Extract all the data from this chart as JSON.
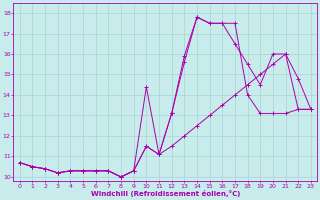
{
  "xlabel": "Windchill (Refroidissement éolien,°C)",
  "background_color": "#c8ecec",
  "grid_color": "#a8d4d4",
  "line_color": "#aa00aa",
  "xlim": [
    -0.5,
    23.5
  ],
  "ylim": [
    9.8,
    18.5
  ],
  "xticks": [
    0,
    1,
    2,
    3,
    4,
    5,
    6,
    7,
    8,
    9,
    10,
    11,
    12,
    13,
    14,
    15,
    16,
    17,
    18,
    19,
    20,
    21,
    22,
    23
  ],
  "yticks": [
    10,
    11,
    12,
    13,
    14,
    15,
    16,
    17,
    18
  ],
  "line1_x": [
    0,
    1,
    2,
    3,
    4,
    5,
    6,
    7,
    8,
    9,
    10,
    11,
    12,
    13,
    14,
    15,
    16,
    17,
    18,
    19,
    20,
    21,
    22,
    23
  ],
  "line1_y": [
    10.7,
    10.5,
    10.4,
    10.2,
    10.3,
    10.3,
    10.3,
    10.3,
    10.0,
    10.3,
    11.5,
    11.1,
    11.5,
    12.0,
    12.5,
    13.0,
    13.5,
    14.0,
    14.5,
    15.0,
    15.5,
    16.0,
    13.3,
    13.3
  ],
  "line2_x": [
    0,
    1,
    2,
    3,
    4,
    5,
    6,
    7,
    8,
    9,
    10,
    11,
    12,
    13,
    14,
    15,
    16,
    17,
    18,
    19,
    20,
    21,
    22,
    23
  ],
  "line2_y": [
    10.7,
    10.5,
    10.4,
    10.2,
    10.3,
    10.3,
    10.3,
    10.3,
    10.0,
    10.3,
    14.4,
    11.1,
    13.1,
    15.9,
    17.8,
    17.5,
    17.5,
    16.5,
    15.5,
    14.5,
    16.0,
    16.0,
    14.8,
    13.3
  ],
  "line3_x": [
    0,
    1,
    2,
    3,
    4,
    5,
    6,
    7,
    8,
    9,
    10,
    11,
    12,
    13,
    14,
    15,
    16,
    17,
    18,
    19,
    20,
    21,
    22,
    23
  ],
  "line3_y": [
    10.7,
    10.5,
    10.4,
    10.2,
    10.3,
    10.3,
    10.3,
    10.3,
    10.0,
    10.3,
    11.5,
    11.1,
    13.1,
    15.6,
    17.8,
    17.5,
    17.5,
    17.5,
    14.0,
    13.1,
    13.1,
    13.1,
    13.3,
    13.3
  ]
}
